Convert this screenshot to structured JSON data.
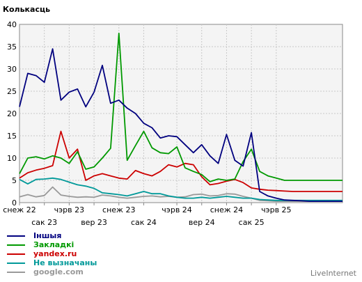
{
  "chart_data": {
    "type": "line",
    "ylabel": "Колькасць",
    "ylim": [
      0,
      40
    ],
    "yticks": [
      0,
      5,
      10,
      15,
      20,
      25,
      30,
      35,
      40
    ],
    "grid": true,
    "x_count": 40,
    "xticks": [
      {
        "i": 0,
        "label": "снеж 22",
        "row": 1
      },
      {
        "i": 3,
        "label": "сак 23",
        "row": 2
      },
      {
        "i": 6,
        "label": "чэрв 23",
        "row": 1
      },
      {
        "i": 9,
        "label": "вер 23",
        "row": 2
      },
      {
        "i": 12,
        "label": "снеж 23",
        "row": 1
      },
      {
        "i": 15,
        "label": "сак 24",
        "row": 2
      },
      {
        "i": 19,
        "label": "чэрв 24",
        "row": 1
      },
      {
        "i": 22,
        "label": "вер 24",
        "row": 2
      },
      {
        "i": 25,
        "label": "снеж 24",
        "row": 1
      },
      {
        "i": 28,
        "label": "сак 25",
        "row": 2
      },
      {
        "i": 31,
        "label": "чэрв 25",
        "row": 1
      }
    ],
    "series": [
      {
        "name": "Іншыя",
        "color": "#00007f",
        "values": [
          21.5,
          29,
          28.5,
          27,
          34.5,
          23,
          24.8,
          25.5,
          21.5,
          24.8,
          30.8,
          22.3,
          23,
          21.2,
          20,
          17.8,
          16.8,
          14.5,
          15,
          14.8,
          13,
          11.2,
          13,
          10.5,
          8.8,
          15.3,
          9.5,
          8.2,
          15.7,
          2.5,
          1.5,
          1.0,
          0.6,
          0.5,
          0.4,
          0.3,
          0.3,
          0.3,
          0.3,
          0.3
        ]
      },
      {
        "name": "Закладкі",
        "color": "#009900",
        "values": [
          6.5,
          10,
          10.3,
          9.8,
          10.5,
          10,
          8.8,
          11.4,
          7.5,
          8,
          10,
          12.2,
          38,
          9.5,
          12.8,
          16,
          12.3,
          11.2,
          11,
          12.5,
          7.8,
          7,
          6.3,
          4.7,
          5.3,
          5,
          5.3,
          9.2,
          12,
          7,
          6,
          5.5,
          5,
          5,
          5,
          5,
          5,
          5,
          5,
          5
        ]
      },
      {
        "name": "yandex.ru",
        "color": "#cc0000",
        "values": [
          5.5,
          6.7,
          7.3,
          7.7,
          8.3,
          16,
          10,
          12,
          5,
          6,
          6.5,
          6.0,
          5.5,
          5.3,
          7.2,
          6.5,
          6.0,
          7.0,
          8.5,
          8,
          8.8,
          8.5,
          5.8,
          4,
          4.3,
          4.8,
          5.2,
          4.5,
          3.3,
          3,
          2.8,
          2.7,
          2.6,
          2.5,
          2.5,
          2.5,
          2.5,
          2.5,
          2.5,
          2.5
        ]
      },
      {
        "name": "Не вызначаны",
        "color": "#009999",
        "values": [
          5.2,
          4.2,
          5.2,
          5.3,
          5.5,
          5.2,
          4.6,
          4,
          3.7,
          3.2,
          2.2,
          2,
          1.8,
          1.5,
          2,
          2.5,
          2,
          2,
          1.5,
          1.2,
          1,
          1,
          1.2,
          1,
          1.2,
          1.4,
          1.2,
          1,
          1,
          0.7,
          0.6,
          0.5,
          0.5,
          0.5,
          0.5,
          0.5,
          0.5,
          0.5,
          0.5,
          0.5
        ]
      },
      {
        "name": "google.com",
        "color": "#999999",
        "values": [
          1.3,
          1.8,
          1.3,
          1.6,
          3.5,
          1.7,
          1.4,
          1.2,
          1.3,
          1.2,
          1.7,
          1.5,
          1.2,
          1,
          1.2,
          1.4,
          1.5,
          1.3,
          1.4,
          1.2,
          1.3,
          1.8,
          1.9,
          1.5,
          1.6,
          2,
          1.9,
          1.4,
          1.0,
          0.5,
          0.4,
          0.3,
          0.3,
          0.3,
          0.3,
          0.3,
          0.3,
          0.3,
          0.3,
          0.3
        ]
      }
    ]
  },
  "legend_labels": [
    "Іншыя",
    "Закладкі",
    "yandex.ru",
    "Не вызначаны",
    "google.com"
  ],
  "brand": "LiveInternet"
}
